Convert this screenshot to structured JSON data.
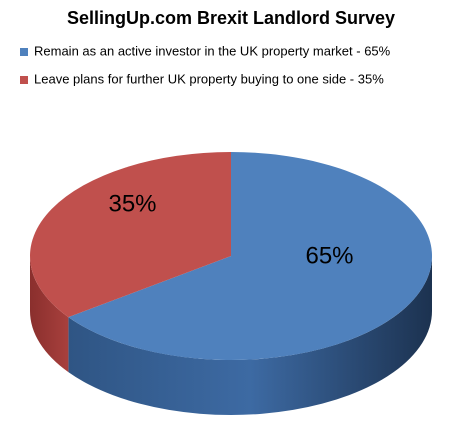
{
  "chart_data": {
    "type": "pie",
    "title": "SellingUp.com Brexit Landlord Survey",
    "categories": [
      "Remain as an active investor in the UK property market - 65%",
      "Leave plans for further UK property buying to one side - 35%"
    ],
    "values": [
      65,
      35
    ],
    "value_labels": [
      "65%",
      "35%"
    ],
    "colors": [
      "#4f81bd",
      "#c0504d"
    ]
  }
}
